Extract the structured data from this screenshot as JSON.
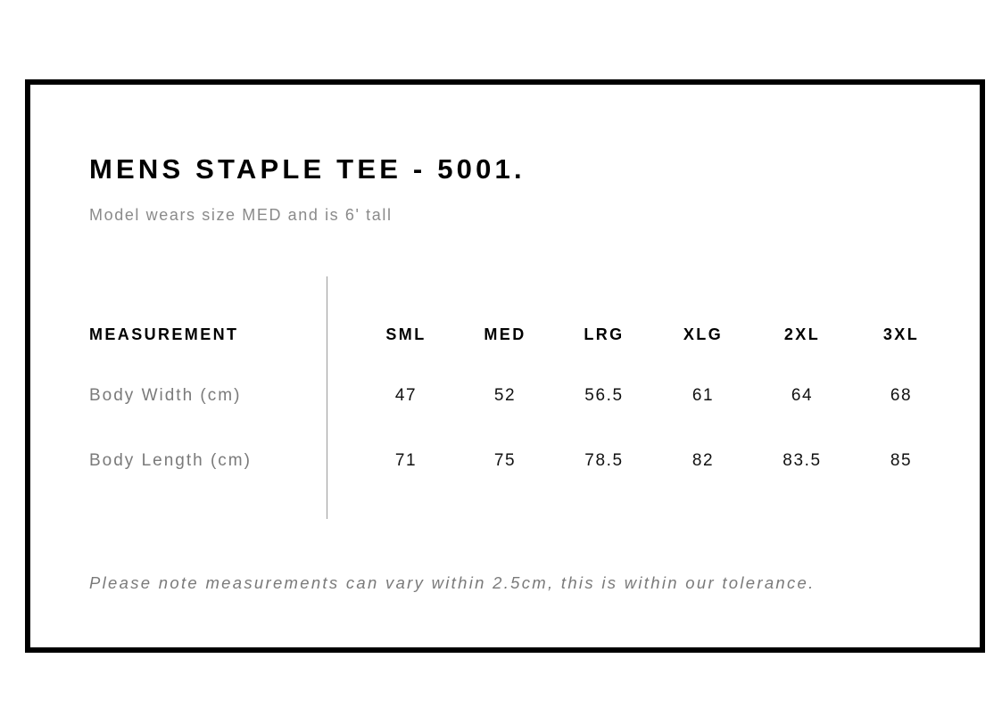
{
  "title": "MENS STAPLE TEE - 5001.",
  "subtitle": "Model wears size MED and is 6' tall",
  "table": {
    "header_label": "MEASUREMENT",
    "sizes": [
      "SML",
      "MED",
      "LRG",
      "XLG",
      "2XL",
      "3XL"
    ],
    "rows": [
      {
        "label": "Body Width (cm)",
        "values": [
          "47",
          "52",
          "56.5",
          "61",
          "64",
          "68"
        ]
      },
      {
        "label": "Body Length (cm)",
        "values": [
          "71",
          "75",
          "78.5",
          "82",
          "83.5",
          "85"
        ]
      }
    ]
  },
  "note": "Please note measurements can vary within 2.5cm, this is within our tolerance."
}
